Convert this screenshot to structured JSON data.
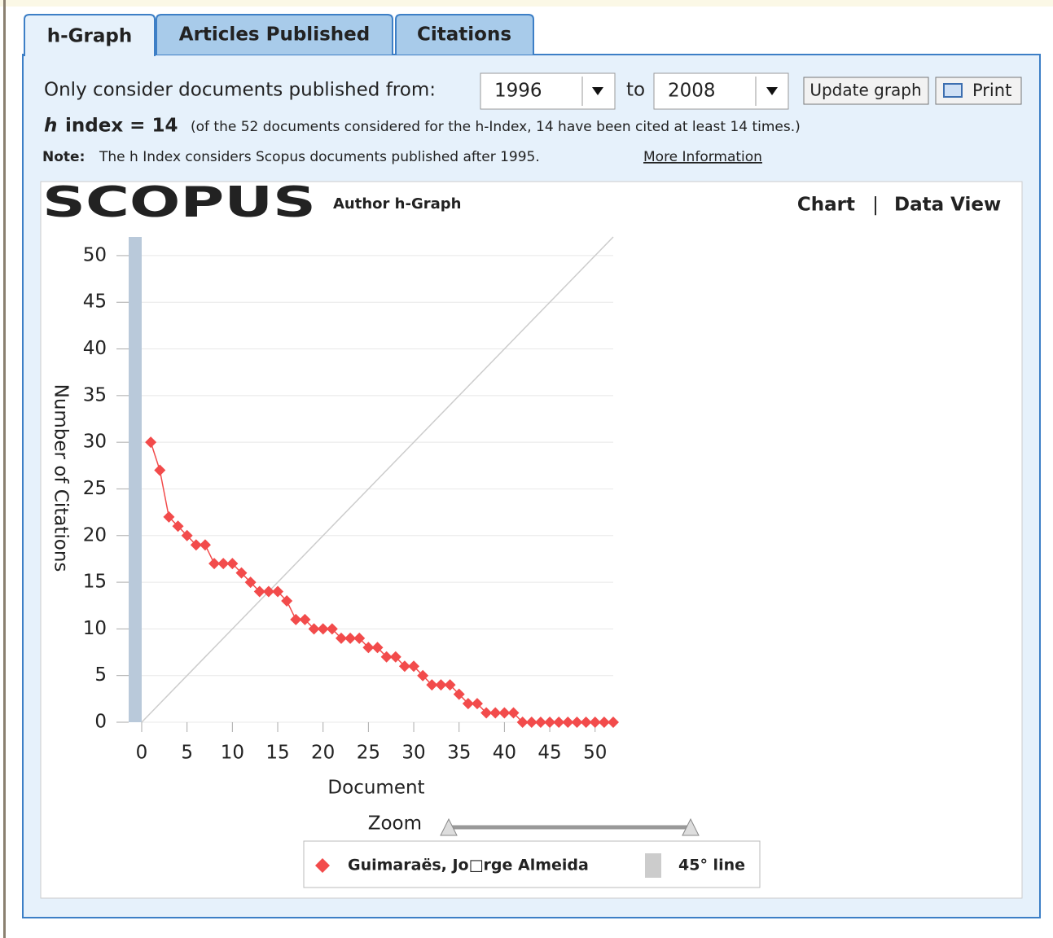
{
  "tabs": [
    "h-Graph",
    "Articles Published",
    "Citations"
  ],
  "filter": {
    "label": "Only consider documents published from:",
    "from": "1996",
    "to_label": "to",
    "to": "2008",
    "update": "Update graph",
    "print": "Print"
  },
  "hindex": {
    "h": "h",
    "label": "index = 14",
    "detail": "(of the 52 documents considered for the h-Index, 14 have been cited at least 14 times.)"
  },
  "note": {
    "label": "Note:",
    "text": "The h Index considers Scopus documents published after 1995.",
    "link": "More Information"
  },
  "header": {
    "logo": "SCOPUS",
    "title": "Author h-Graph",
    "chart": "Chart",
    "separator": "|",
    "data_view": "Data View"
  },
  "zoom": "Zoom",
  "chart_data": {
    "type": "line",
    "x_label": "Document",
    "y_label": "Number of Citations",
    "x": [
      1,
      2,
      3,
      4,
      5,
      6,
      7,
      8,
      9,
      10,
      11,
      12,
      13,
      14,
      15,
      16,
      17,
      18,
      19,
      20,
      21,
      22,
      23,
      24,
      25,
      26,
      27,
      28,
      29,
      30,
      31,
      32,
      33,
      34,
      35,
      36,
      37,
      38,
      39,
      40,
      41,
      42,
      43,
      44,
      45,
      46,
      47,
      48,
      49,
      50,
      51,
      52
    ],
    "series": [
      {
        "name": "Guimaraës, Jo□rge Almeida",
        "color": "#f24b4b",
        "values": [
          30,
          27,
          22,
          21,
          20,
          19,
          19,
          17,
          17,
          17,
          16,
          15,
          14,
          14,
          14,
          13,
          11,
          11,
          10,
          10,
          10,
          9,
          9,
          9,
          8,
          8,
          7,
          7,
          6,
          6,
          5,
          4,
          4,
          4,
          3,
          2,
          2,
          1,
          1,
          1,
          1,
          0,
          0,
          0,
          0,
          0,
          0,
          0,
          0,
          0,
          0,
          0
        ]
      }
    ],
    "reference_line": {
      "name": "45° line",
      "color": "#cccccc"
    },
    "xlim": [
      0,
      52
    ],
    "xticks": [
      0,
      5,
      10,
      15,
      20,
      25,
      30,
      35,
      40,
      45,
      50
    ],
    "ylim": [
      0,
      52
    ],
    "yticks": [
      0,
      5,
      10,
      15,
      20,
      25,
      30,
      35,
      40,
      45,
      50
    ],
    "grid": true
  }
}
